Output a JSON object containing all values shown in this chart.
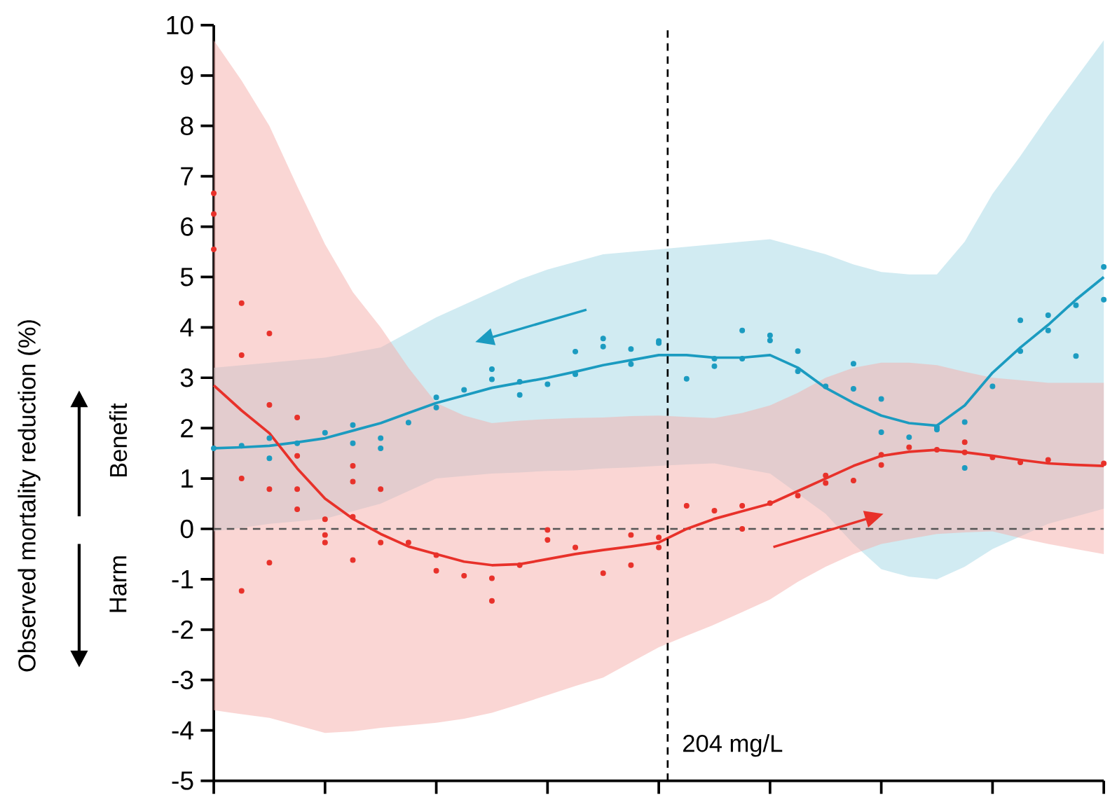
{
  "chart_data": {
    "type": "line",
    "annotations": [
      "Benefit",
      "Harm",
      "204 mg/L",
      "Observed mortality reduction (%)"
    ],
    "categories": [
      null,
      null,
      null,
      null,
      null,
      null,
      null,
      null,
      null,
      null,
      null,
      null,
      null,
      null,
      null,
      null,
      null,
      null,
      null,
      null,
      null,
      null,
      null,
      null,
      null,
      null,
      null,
      null,
      null,
      null,
      null,
      null,
      null
    ],
    "ylim": [
      -5,
      10
    ],
    "yticks": [
      -5,
      -4,
      -3,
      -2,
      -1,
      0,
      1,
      2,
      3,
      4,
      5,
      6,
      7,
      8,
      9,
      10
    ],
    "tick_labels": "y",
    "ref_lines": [
      {
        "axis": "y",
        "value": 0,
        "color": "#555555",
        "line_style": "dashed"
      }
    ],
    "series": [
      {
        "color": "#1b9bc0",
        "values": [
          1.6,
          1.62,
          1.65,
          1.72,
          1.8,
          1.95,
          2.1,
          2.3,
          2.5,
          2.65,
          2.8,
          2.9,
          3.0,
          3.12,
          3.25,
          3.35,
          3.45,
          3.45,
          3.4,
          3.4,
          3.45,
          3.2,
          2.8,
          2.5,
          2.25,
          2.1,
          2.05,
          2.45,
          3.1,
          3.6,
          4.05,
          4.55,
          5.0
        ],
        "lower": [
          -0.05,
          0.02,
          0.1,
          0.15,
          0.2,
          0.35,
          0.5,
          0.75,
          1.0,
          1.05,
          1.1,
          1.12,
          1.15,
          1.16,
          1.2,
          1.22,
          1.25,
          1.28,
          1.3,
          1.2,
          1.1,
          0.7,
          0.3,
          -0.3,
          -0.8,
          -0.95,
          -1.0,
          -0.75,
          -0.4,
          -0.15,
          0.1,
          0.25,
          0.4
        ],
        "upper": [
          3.2,
          3.25,
          3.3,
          3.35,
          3.4,
          3.5,
          3.6,
          3.9,
          4.2,
          4.45,
          4.7,
          4.95,
          5.15,
          5.3,
          5.45,
          5.5,
          5.55,
          5.6,
          5.65,
          5.7,
          5.75,
          5.6,
          5.45,
          5.25,
          5.1,
          5.05,
          5.05,
          5.7,
          6.65,
          7.4,
          8.2,
          8.95,
          9.7
        ]
      },
      {
        "color": "#e8312a",
        "values": [
          2.85,
          2.35,
          1.9,
          1.2,
          0.6,
          0.2,
          -0.1,
          -0.35,
          -0.5,
          -0.65,
          -0.72,
          -0.7,
          -0.6,
          -0.5,
          -0.42,
          -0.35,
          -0.27,
          0.0,
          0.2,
          0.35,
          0.5,
          0.75,
          1.0,
          1.25,
          1.45,
          1.53,
          1.57,
          1.52,
          1.45,
          1.37,
          1.3,
          1.27,
          1.25
        ],
        "lower": [
          -3.6,
          -3.68,
          -3.75,
          -3.9,
          -4.05,
          -4.02,
          -3.95,
          -3.9,
          -3.85,
          -3.77,
          -3.65,
          -3.48,
          -3.3,
          -3.12,
          -2.95,
          -2.65,
          -2.35,
          -2.12,
          -1.9,
          -1.65,
          -1.4,
          -1.05,
          -0.75,
          -0.5,
          -0.3,
          -0.2,
          -0.1,
          -0.07,
          -0.05,
          -0.18,
          -0.3,
          -0.4,
          -0.5
        ],
        "upper": [
          9.7,
          8.9,
          8.0,
          6.8,
          5.65,
          4.7,
          4.0,
          3.2,
          2.5,
          2.25,
          2.1,
          2.15,
          2.18,
          2.2,
          2.21,
          2.24,
          2.25,
          2.22,
          2.2,
          2.3,
          2.45,
          2.7,
          3.0,
          3.2,
          3.3,
          3.3,
          3.25,
          3.12,
          3.0,
          2.95,
          2.9,
          2.9,
          2.9
        ]
      },
      {
        "type": "scatter",
        "color": "#1b9bc0",
        "values": [
          1.6,
          1.65,
          1.8,
          1.7,
          1.91,
          2.06,
          1.6,
          2.11,
          2.41,
          2.76,
          3.17,
          2.92,
          2.87,
          3.07,
          3.62,
          3.27,
          3.73,
          2.98,
          3.23,
          3.94,
          3.74,
          3.53,
          2.83,
          3.28,
          2.58,
          1.82,
          1.97,
          2.12,
          2.83,
          3.53,
          4.24,
          4.44,
          4.55
        ]
      },
      {
        "type": "scatter",
        "color": "#1b9bc0",
        "values": [
          null,
          null,
          1.4,
          null,
          null,
          1.7,
          1.8,
          null,
          2.61,
          null,
          2.97,
          2.66,
          null,
          3.52,
          3.78,
          3.57,
          3.69,
          null,
          3.38,
          3.38,
          3.84,
          3.13,
          null,
          2.78,
          1.92,
          null,
          2.02,
          1.21,
          null,
          4.14,
          3.94,
          3.43,
          5.2
        ]
      },
      {
        "type": "scatter",
        "color": "#e8312a",
        "values": [
          6.66,
          4.48,
          3.88,
          1.45,
          0.19,
          0.24,
          0.79,
          -0.27,
          -0.52,
          -0.93,
          -1.43,
          -0.72,
          -0.02,
          -0.37,
          -0.88,
          -0.72,
          -0.37,
          0.46,
          0.36,
          0.0,
          0.51,
          0.66,
          0.91,
          0.96,
          1.27,
          1.62,
          1.57,
          1.52,
          1.42,
          1.32,
          1.37,
          null,
          1.3
        ]
      },
      {
        "type": "scatter",
        "color": "#e8312a",
        "values": [
          5.55,
          1.0,
          0.79,
          0.79,
          -0.27,
          0.94,
          -0.27,
          null,
          -0.83,
          null,
          -0.98,
          null,
          -0.22,
          null,
          null,
          -0.12,
          -0.17,
          null,
          null,
          0.46,
          null,
          null,
          1.06,
          null,
          1.47,
          null,
          null,
          1.72,
          null,
          null,
          null,
          null,
          null
        ]
      },
      {
        "type": "scatter",
        "color": "#e8312a",
        "values": [
          6.25,
          -1.23,
          -0.67,
          0.39,
          -0.12,
          -0.62,
          null,
          null,
          null,
          null,
          null,
          null,
          null,
          null,
          null,
          null,
          null,
          null,
          null,
          null,
          null,
          null,
          null,
          null,
          null,
          null,
          null,
          null,
          null,
          null,
          null,
          null,
          null
        ]
      },
      {
        "type": "scatter",
        "color": "#e8312a",
        "values": [
          null,
          3.45,
          2.46,
          2.21,
          null,
          1.25,
          null,
          null,
          null,
          null,
          null,
          null,
          null,
          null,
          null,
          null,
          null,
          null,
          null,
          null,
          null,
          null,
          null,
          null,
          null,
          null,
          null,
          null,
          null,
          null,
          null,
          null,
          null
        ]
      }
    ]
  }
}
